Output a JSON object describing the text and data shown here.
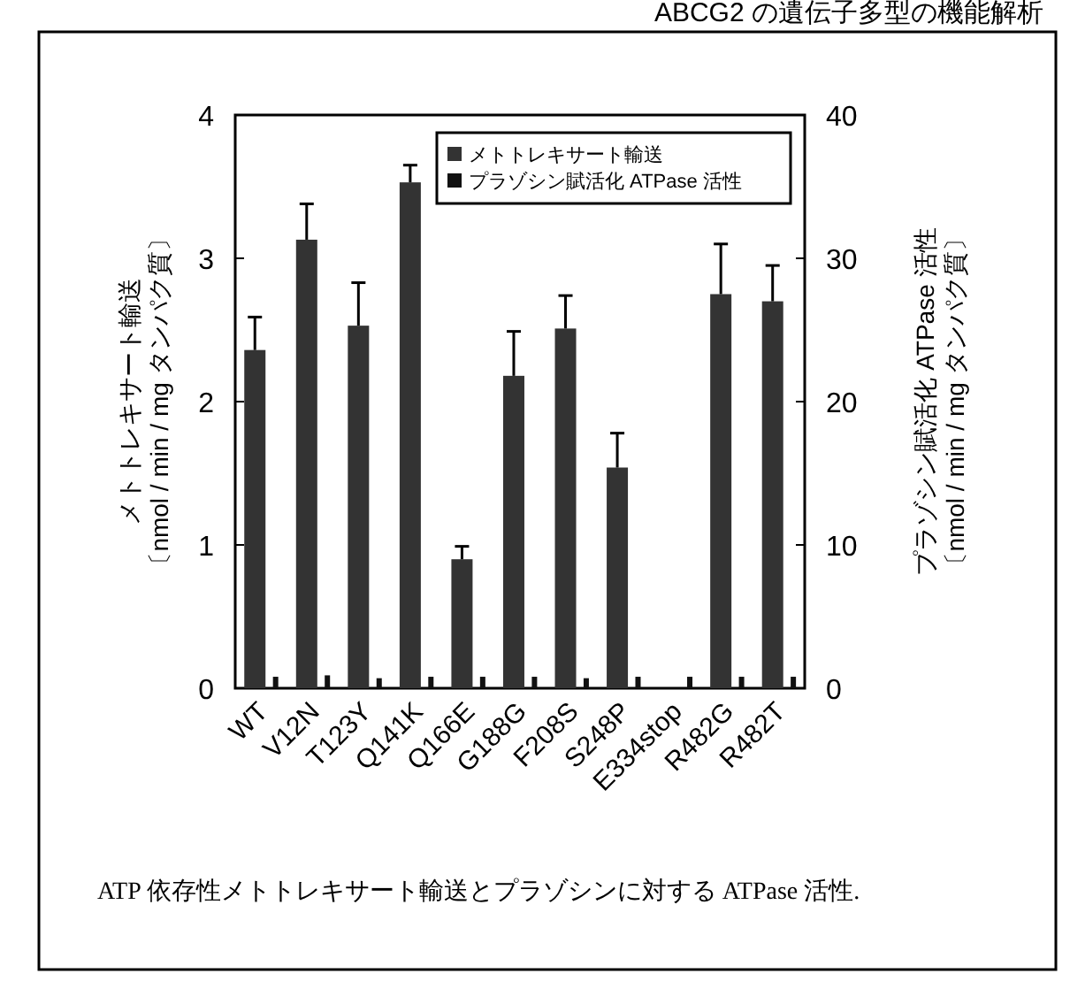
{
  "chart_data": {
    "type": "bar",
    "categories": [
      "WT",
      "V12N",
      "T123Y",
      "Q141K",
      "Q166E",
      "G188G",
      "F208S",
      "S248P",
      "E334stop",
      "R482G",
      "R482T"
    ],
    "series": [
      {
        "name": "メトトレキサート輸送",
        "color": "#333333",
        "values": [
          2.36,
          3.13,
          2.53,
          3.53,
          0.9,
          2.18,
          2.51,
          1.54,
          0,
          2.75,
          2.7
        ],
        "errors": [
          [
            2.36,
            2.59
          ],
          [
            3.13,
            3.38
          ],
          [
            2.53,
            2.83
          ],
          [
            3.53,
            3.65
          ],
          [
            0.9,
            0.99
          ],
          [
            2.18,
            2.49
          ],
          [
            2.51,
            2.74
          ],
          [
            1.54,
            1.78
          ],
          null,
          [
            2.75,
            3.1
          ],
          [
            2.7,
            2.95
          ]
        ]
      },
      {
        "name": "プラゾシン賦活化 ATPase 活性",
        "color": "#111111",
        "axis": "y2",
        "values": [
          0.8,
          0.9,
          0.7,
          0.8,
          0.8,
          0.8,
          0.7,
          0.8,
          0.8,
          0.8,
          0.8
        ]
      }
    ],
    "ylim": [
      0,
      4
    ],
    "yticks": [
      0,
      1,
      2,
      3,
      4
    ],
    "y2lim": [
      0,
      40
    ],
    "y2ticks": [
      0,
      10,
      20,
      30,
      40
    ],
    "ylabel": "メトトレキサート輸送〔nmol / min / mg タンパク質〕",
    "y2label": "プラゾシン賦活化 ATPase 活性〔nmol / min / mg タンパク質〕",
    "legend": "top right",
    "annotations": [
      "ABCG2 の遺伝子多型の機能解析",
      "ATP 依存性メトトレキサート輸送とプラゾシンに対する ATPase 活性."
    ]
  }
}
